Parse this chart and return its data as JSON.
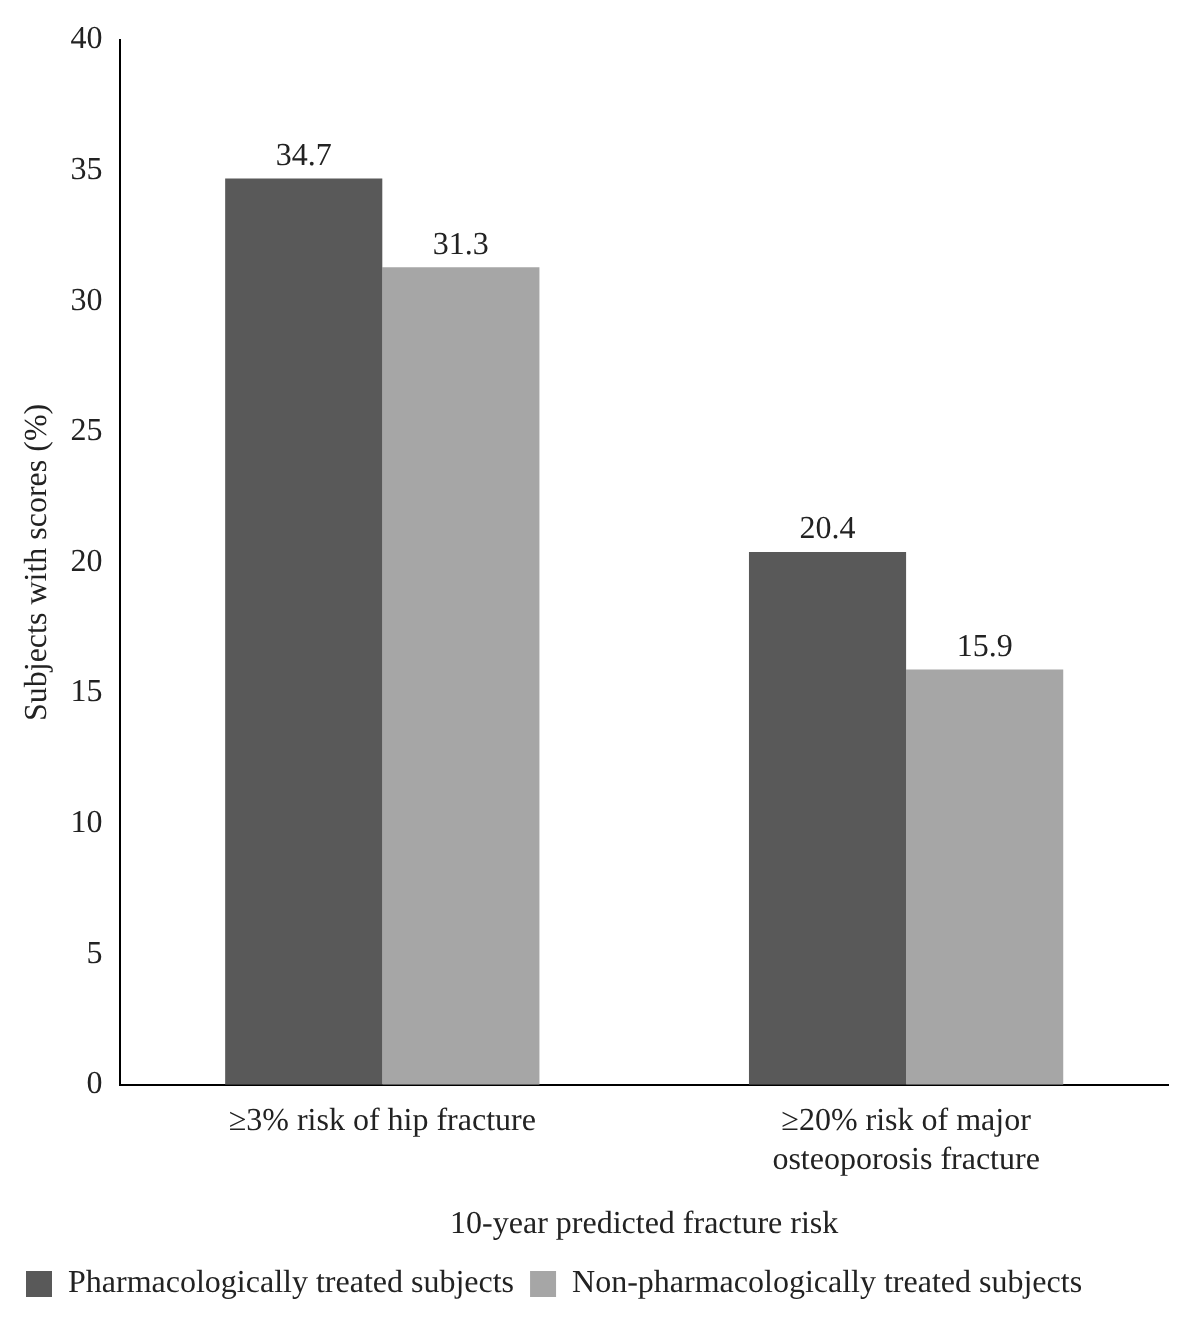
{
  "chart_data": {
    "type": "bar",
    "xlabel": "10-year predicted fracture risk",
    "ylabel": "Subjects with scores (%)",
    "categories": [
      "≥3% risk of hip fracture",
      "≥20% risk of major osteoporosis fracture"
    ],
    "series": [
      {
        "name": "Pharmacologically treated subjects",
        "color": "#595959",
        "values": [
          34.7,
          20.4
        ]
      },
      {
        "name": "Non-pharmacologically treated subjects",
        "color": "#a6a6a6",
        "values": [
          31.3,
          15.9
        ]
      }
    ],
    "ylim": [
      0,
      40
    ],
    "yticks": [
      0,
      5,
      10,
      15,
      20,
      25,
      30,
      35,
      40
    ],
    "grid": false,
    "legend": "bottom left",
    "data_labels": true
  }
}
